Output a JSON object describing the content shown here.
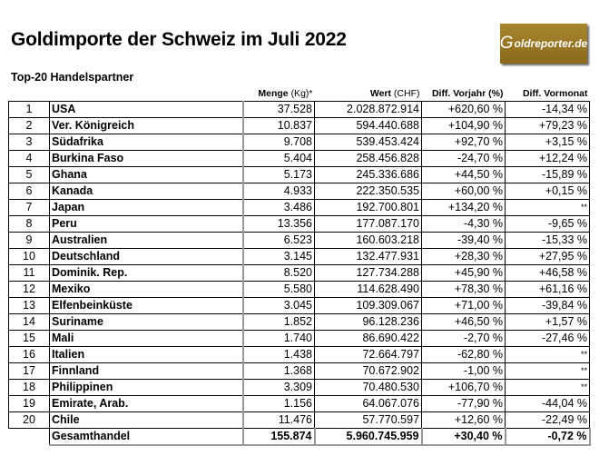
{
  "title": "Goldimporte der Schweiz im Juli 2022",
  "subtitle": "Top-20 Handelspartner",
  "logo": "Goldreporter.de",
  "headers": {
    "menge": "Menge",
    "menge_unit": "(Kg)*",
    "wert": "Wert",
    "wert_unit": "(CHF)",
    "vorjahr": "Diff. Vorjahr (%)",
    "vormonat": "Diff. Vormonat"
  },
  "rows": [
    [
      "1",
      "USA",
      "37.528",
      "2.028.872.914",
      "+620,60 %",
      "-14,34 %"
    ],
    [
      "2",
      "Ver. Königreich",
      "10.837",
      "594.440.688",
      "+104,90 %",
      "+79,23 %"
    ],
    [
      "3",
      "Südafrika",
      "9.708",
      "539.453.424",
      "+92,70 %",
      "+3,15 %"
    ],
    [
      "4",
      "Burkina Faso",
      "5.404",
      "258.456.828",
      "-24,70 %",
      "+12,24 %"
    ],
    [
      "5",
      "Ghana",
      "5.173",
      "245.336.686",
      "+44,50 %",
      "-15,89 %"
    ],
    [
      "6",
      "Kanada",
      "4.933",
      "222.350.535",
      "+60,00 %",
      "+0,15 %"
    ],
    [
      "7",
      "Japan",
      "3.486",
      "192.700.801",
      "+134,20 %",
      "**"
    ],
    [
      "8",
      "Peru",
      "13.356",
      "177.087.170",
      "-4,30 %",
      "-9,65 %"
    ],
    [
      "9",
      "Australien",
      "6.523",
      "160.603.218",
      "-39,40 %",
      "-15,33 %"
    ],
    [
      "10",
      "Deutschland",
      "3.145",
      "132.477.931",
      "+28,30 %",
      "+27,95 %"
    ],
    [
      "11",
      "Dominik. Rep.",
      "8.520",
      "127.734.288",
      "+45,90 %",
      "+46,58 %"
    ],
    [
      "12",
      "Mexiko",
      "5.580",
      "114.628.490",
      "+78,30 %",
      "+61,16 %"
    ],
    [
      "13",
      "Elfenbeinküste",
      "3.045",
      "109.309.067",
      "+71,00 %",
      "-39,84 %"
    ],
    [
      "14",
      "Suriname",
      "1.852",
      "96.128.236",
      "+46,50 %",
      "+1,57 %"
    ],
    [
      "15",
      "Mali",
      "1.740",
      "86.690.422",
      "-2,70 %",
      "-27,46 %"
    ],
    [
      "16",
      "Italien",
      "1.438",
      "72.664.797",
      "-62,80 %",
      "**"
    ],
    [
      "17",
      "Finnland",
      "1.368",
      "70.672.902",
      "-1,00 %",
      "**"
    ],
    [
      "18",
      "Philippinen",
      "3.309",
      "70.480.530",
      "+106,70 %",
      "**"
    ],
    [
      "19",
      "Emirate, Arab.",
      "1.156",
      "64.067.076",
      "-77,90 %",
      "-44,04 %"
    ],
    [
      "20",
      "Chile",
      "11.476",
      "57.770.597",
      "+12,60 %",
      "-22,49 %"
    ]
  ],
  "total": [
    "Gesamthandel",
    "155.874",
    "5.960.745.959",
    "+30,40 %",
    "-0,72 %"
  ]
}
